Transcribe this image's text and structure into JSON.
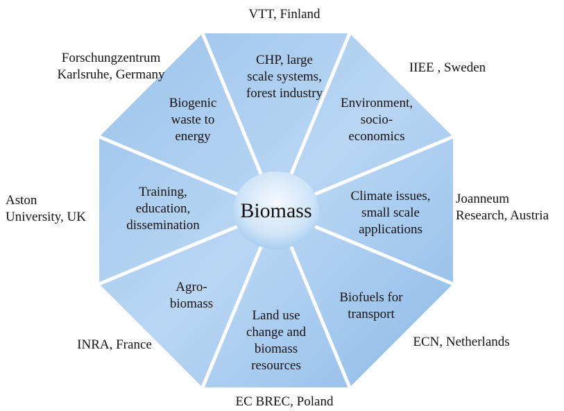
{
  "center": "Biomass",
  "segments": [
    {
      "label": [
        "CHP, large",
        "scale systems,",
        "forest industry"
      ],
      "partner": [
        "VTT, Finland"
      ]
    },
    {
      "label": [
        "Environment,",
        "socio-",
        "economics"
      ],
      "partner": [
        "IIEE ,  Sweden"
      ]
    },
    {
      "label": [
        "Climate issues,",
        "small scale",
        "applications"
      ],
      "partner": [
        "Joanneum",
        "Research, Austria"
      ]
    },
    {
      "label": [
        "Biofuels for",
        "transport"
      ],
      "partner": [
        "ECN, Netherlands"
      ]
    },
    {
      "label": [
        "Land use",
        "change and",
        "biomass",
        "resources"
      ],
      "partner": [
        "EC BREC, Poland"
      ]
    },
    {
      "label": [
        "Agro-",
        "biomass"
      ],
      "partner": [
        "INRA, France"
      ]
    },
    {
      "label": [
        "Training,",
        "education,",
        "dissemination"
      ],
      "partner": [
        "Aston",
        "University, UK"
      ]
    },
    {
      "label": [
        "Biogenic",
        "waste to",
        "energy"
      ],
      "partner": [
        "Forschungzentrum",
        "Karlsruhe, Germany"
      ]
    }
  ]
}
